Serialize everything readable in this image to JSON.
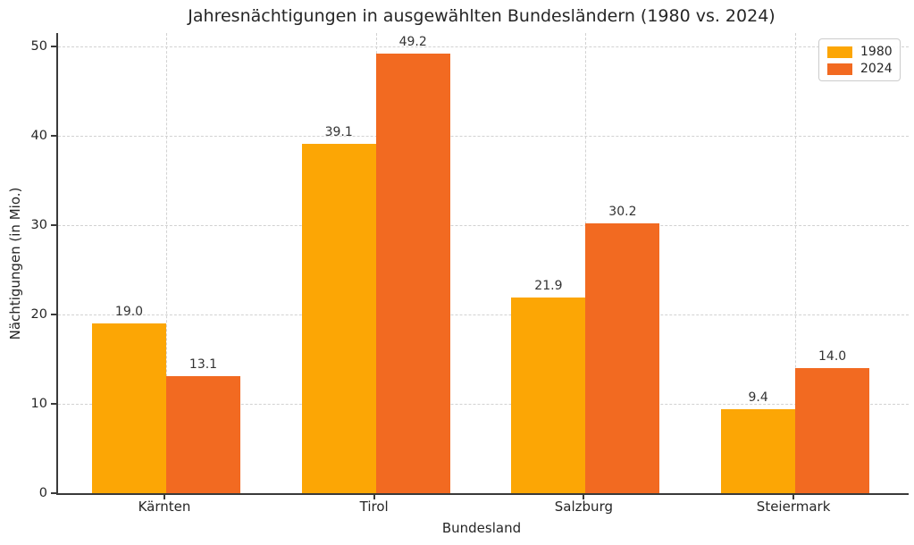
{
  "chart_data": {
    "type": "bar",
    "title": "Jahresnächtigungen in ausgewählten Bundesländern (1980 vs. 2024)",
    "xlabel": "Bundesland",
    "ylabel": "Nächtigungen (in Mio.)",
    "categories": [
      "Kärnten",
      "Tirol",
      "Salzburg",
      "Steiermark"
    ],
    "series": [
      {
        "name": "1980",
        "color": "#FCA605",
        "values": [
          19.0,
          39.1,
          21.9,
          9.4
        ]
      },
      {
        "name": "2024",
        "color": "#F26A21",
        "values": [
          13.1,
          49.2,
          30.2,
          14.0
        ]
      }
    ],
    "value_labels": {
      "1980": [
        "19.0",
        "39.1",
        "21.9",
        "9.4"
      ],
      "2024": [
        "13.1",
        "49.2",
        "30.2",
        "14.0"
      ]
    },
    "yticks": [
      0,
      10,
      20,
      30,
      40,
      50
    ],
    "ylim": [
      0,
      51.5
    ],
    "grid": true,
    "grid_style": "dashed",
    "legend_position": "upper right",
    "legend_entries": [
      "1980",
      "2024"
    ]
  }
}
